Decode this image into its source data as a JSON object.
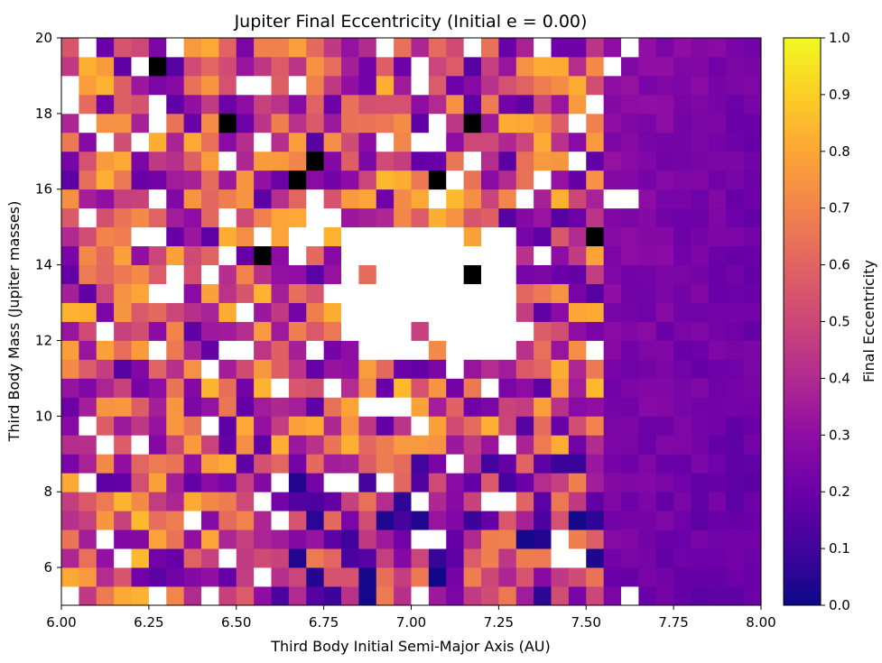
{
  "chart_data": {
    "type": "heatmap",
    "title": "Jupiter Final Eccentricity (Initial e = 0.00)",
    "xlabel": "Third Body Initial Semi-Major Axis (AU)",
    "ylabel": "Third Body Mass (Jupiter masses)",
    "xlim": [
      6.0,
      8.0
    ],
    "ylim": [
      5.0,
      20.0
    ],
    "x_ticks": [
      "6.00",
      "6.25",
      "6.50",
      "6.75",
      "7.00",
      "7.25",
      "7.50",
      "7.75",
      "8.00"
    ],
    "y_ticks": [
      "6",
      "8",
      "10",
      "12",
      "14",
      "16",
      "18",
      "20"
    ],
    "grid": {
      "nx": 40,
      "ny": 30
    },
    "colormap": "plasma",
    "colorbar": {
      "label": "Final Eccentricity",
      "range": [
        0.0,
        1.0
      ],
      "ticks": [
        "0.0",
        "0.1",
        "0.2",
        "0.3",
        "0.4",
        "0.5",
        "0.6",
        "0.7",
        "0.8",
        "0.9",
        "1.0"
      ]
    },
    "missing_color": "#ffffff",
    "unbound_color": "#000000",
    "value_model": {
      "description": "estimated per-cell final eccentricity",
      "stable_region_x_min": 7.55,
      "chaotic_mean": 0.5,
      "stable_mean": 0.2,
      "white_hole": {
        "x": [
          6.8,
          7.3
        ],
        "y": [
          11.5,
          15.0
        ]
      }
    }
  }
}
